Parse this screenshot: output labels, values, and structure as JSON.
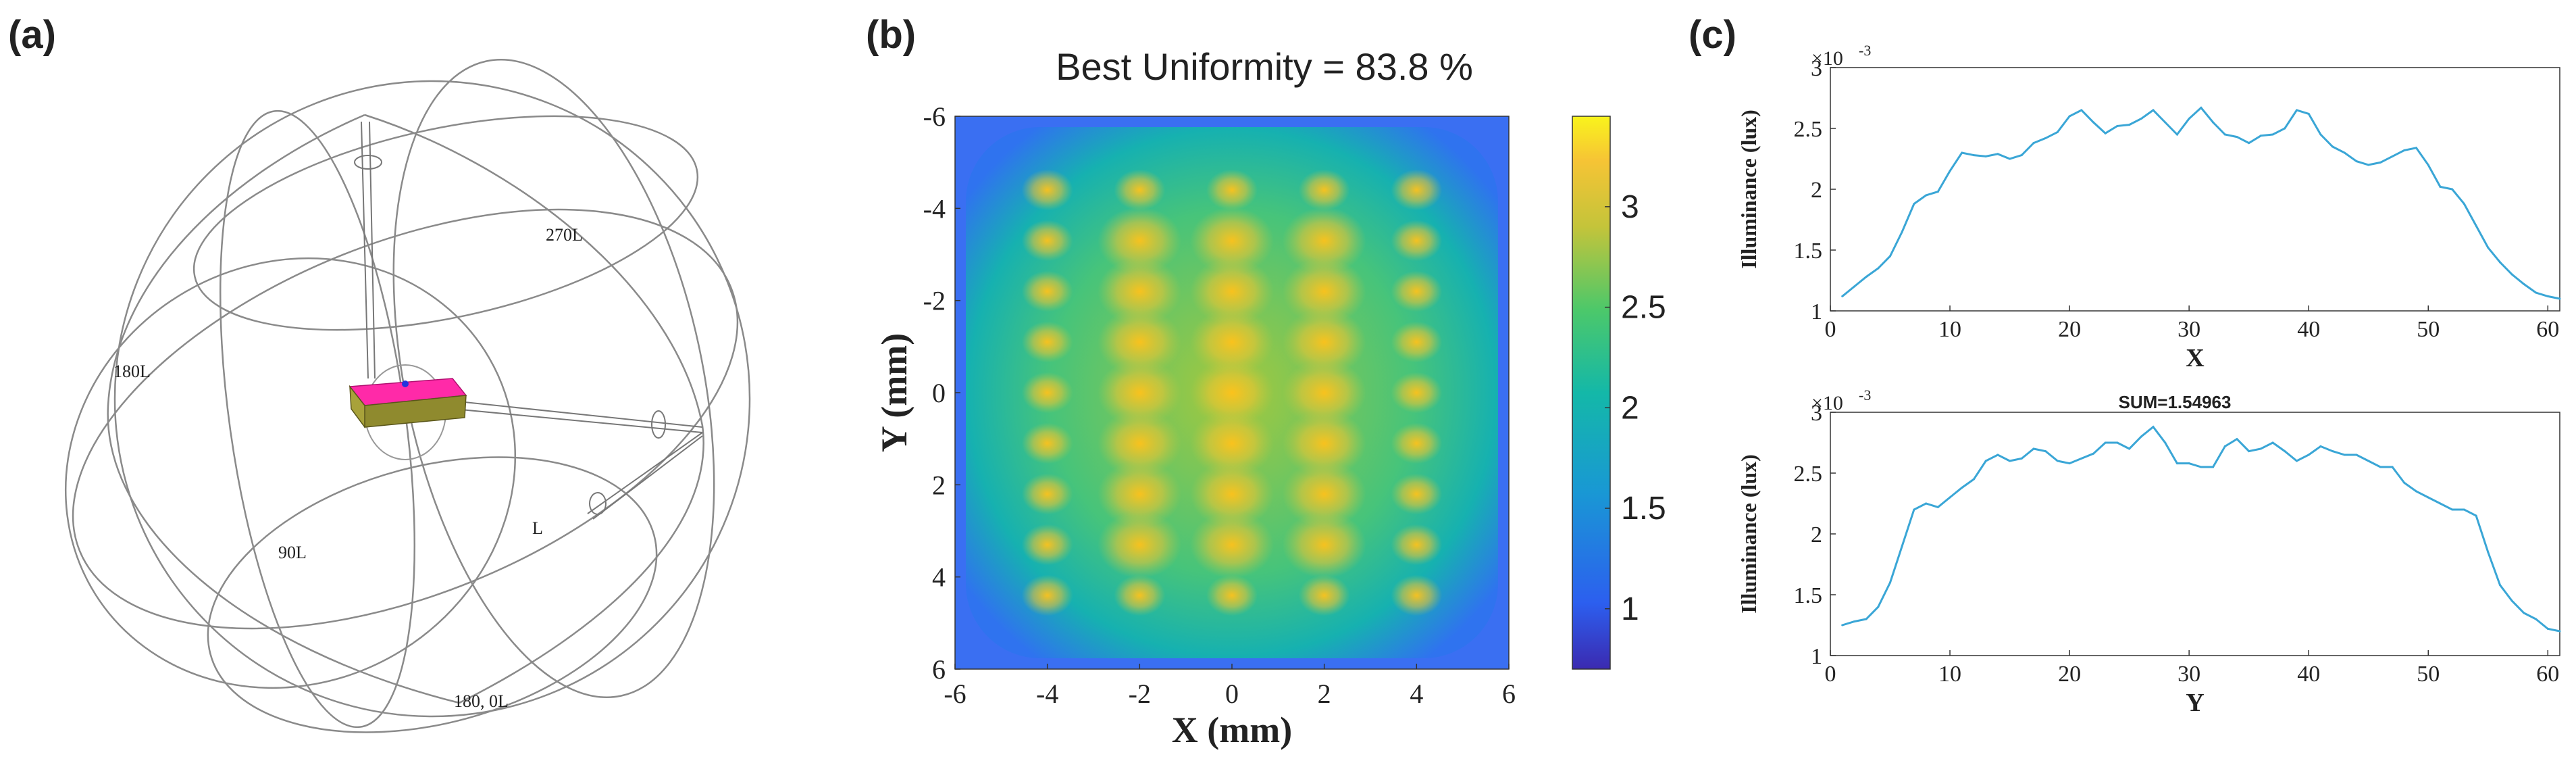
{
  "panels": {
    "a": {
      "label": "(a)",
      "sphere_labels": [
        "270L",
        "180L",
        "90L",
        "L",
        "180, 0L"
      ],
      "colors": {
        "wire": "#8a8a8a",
        "chip_top": "#ff2aa8",
        "chip_side": "#8f8a2e"
      }
    },
    "b": {
      "label": "(b)",
      "title": "Best Uniformity = 83.8 %",
      "xlabel": "X (mm)",
      "ylabel": "Y (mm)",
      "xticks": [
        "-6",
        "-4",
        "-2",
        "0",
        "2",
        "4",
        "6"
      ],
      "yticks": [
        "-6",
        "-4",
        "-2",
        "0",
        "2",
        "4",
        "6"
      ],
      "colorbar_ticks": [
        "3",
        "2.5",
        "2",
        "1.5",
        "1"
      ]
    },
    "c": {
      "label": "(c)",
      "scale_label": "×10",
      "scale_exp": "-3",
      "line_color": "#3aa6d6"
    }
  },
  "chart_data": [
    {
      "type": "heatmap",
      "title": "Best Uniformity = 83.8 %",
      "xlabel": "X (mm)",
      "ylabel": "Y (mm)",
      "xlim": [
        -6,
        6
      ],
      "ylim": [
        6,
        -6
      ],
      "colorbar_range": [
        0.7,
        3.45
      ],
      "colorbar_ticks": [
        1,
        1.5,
        2,
        2.5,
        3
      ],
      "uniformity_percent": 83.8,
      "led_columns_x": [
        -4,
        -2,
        0,
        2,
        4
      ],
      "led_rows_y": [
        -4.4,
        -3.3,
        -2.2,
        -1.1,
        0,
        1.1,
        2.2,
        3.3,
        4.4
      ]
    },
    {
      "type": "line",
      "title": "",
      "xlabel": "X",
      "ylabel": "Illuminance (lux)",
      "scale": "×10^-3",
      "xlim": [
        0,
        61
      ],
      "ylim": [
        1,
        3
      ],
      "xticks": [
        0,
        10,
        20,
        30,
        40,
        50,
        60
      ],
      "yticks": [
        1,
        1.5,
        2,
        2.5,
        3
      ],
      "x": [
        1,
        2,
        3,
        4,
        5,
        6,
        7,
        8,
        9,
        10,
        11,
        12,
        13,
        14,
        15,
        16,
        17,
        18,
        19,
        20,
        21,
        22,
        23,
        24,
        25,
        26,
        27,
        28,
        29,
        30,
        31,
        32,
        33,
        34,
        35,
        36,
        37,
        38,
        39,
        40,
        41,
        42,
        43,
        44,
        45,
        46,
        47,
        48,
        49,
        50,
        51,
        52,
        53,
        54,
        55,
        56,
        57,
        58,
        59,
        60,
        61
      ],
      "values": [
        1.12,
        1.2,
        1.28,
        1.35,
        1.45,
        1.65,
        1.88,
        1.95,
        1.98,
        2.15,
        2.3,
        2.28,
        2.27,
        2.29,
        2.25,
        2.28,
        2.38,
        2.42,
        2.47,
        2.6,
        2.65,
        2.55,
        2.46,
        2.52,
        2.53,
        2.58,
        2.65,
        2.55,
        2.45,
        2.58,
        2.67,
        2.55,
        2.45,
        2.43,
        2.38,
        2.44,
        2.45,
        2.5,
        2.65,
        2.62,
        2.45,
        2.35,
        2.3,
        2.23,
        2.2,
        2.22,
        2.27,
        2.32,
        2.34,
        2.2,
        2.02,
        2.0,
        1.88,
        1.7,
        1.52,
        1.4,
        1.3,
        1.22,
        1.15,
        1.12,
        1.1
      ]
    },
    {
      "type": "line",
      "title": "SUM=1.54963",
      "xlabel": "Y",
      "ylabel": "Illuminance (lux)",
      "scale": "×10^-3",
      "xlim": [
        0,
        61
      ],
      "ylim": [
        1,
        3
      ],
      "xticks": [
        0,
        10,
        20,
        30,
        40,
        50,
        60
      ],
      "yticks": [
        1,
        1.5,
        2,
        2.5,
        3
      ],
      "x": [
        1,
        2,
        3,
        4,
        5,
        6,
        7,
        8,
        9,
        10,
        11,
        12,
        13,
        14,
        15,
        16,
        17,
        18,
        19,
        20,
        21,
        22,
        23,
        24,
        25,
        26,
        27,
        28,
        29,
        30,
        31,
        32,
        33,
        34,
        35,
        36,
        37,
        38,
        39,
        40,
        41,
        42,
        43,
        44,
        45,
        46,
        47,
        48,
        49,
        50,
        51,
        52,
        53,
        54,
        55,
        56,
        57,
        58,
        59,
        60,
        61
      ],
      "values": [
        1.25,
        1.28,
        1.3,
        1.4,
        1.6,
        1.9,
        2.2,
        2.25,
        2.22,
        2.3,
        2.38,
        2.45,
        2.6,
        2.65,
        2.6,
        2.62,
        2.7,
        2.68,
        2.6,
        2.58,
        2.62,
        2.66,
        2.75,
        2.75,
        2.7,
        2.8,
        2.88,
        2.75,
        2.58,
        2.58,
        2.55,
        2.55,
        2.72,
        2.78,
        2.68,
        2.7,
        2.75,
        2.68,
        2.6,
        2.65,
        2.72,
        2.68,
        2.65,
        2.65,
        2.6,
        2.55,
        2.55,
        2.42,
        2.35,
        2.3,
        2.25,
        2.2,
        2.2,
        2.15,
        1.85,
        1.58,
        1.45,
        1.35,
        1.3,
        1.22,
        1.2
      ]
    }
  ]
}
